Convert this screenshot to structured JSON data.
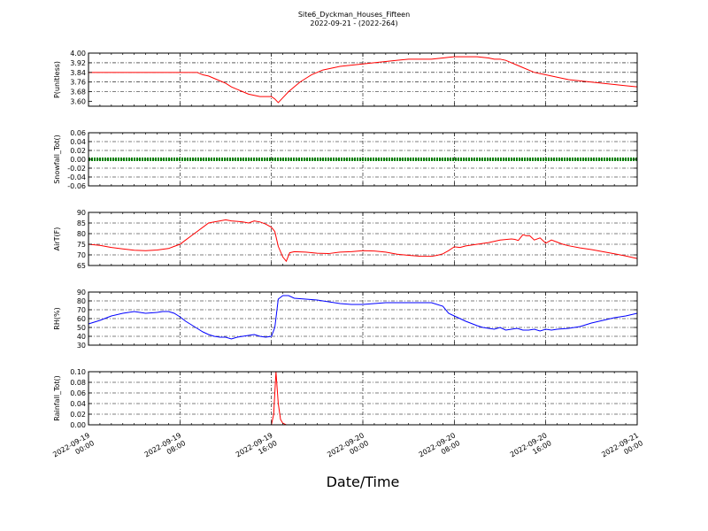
{
  "title": "Site6_Dyckman_Houses_Fifteen",
  "subtitle": "2022-09-21 - (2022-264)",
  "xlabel": "Date/Time",
  "x_ticks": [
    [
      "2022-09-19",
      "00:00"
    ],
    [
      "2022-09-19",
      "08:00"
    ],
    [
      "2022-09-19",
      "16:00"
    ],
    [
      "2022-09-20",
      "00:00"
    ],
    [
      "2022-09-20",
      "08:00"
    ],
    [
      "2022-09-20",
      "16:00"
    ],
    [
      "2022-09-21",
      "00:00"
    ]
  ],
  "colors": {
    "red": "#ff0000",
    "green": "#008000",
    "blue": "#0000ff"
  },
  "chart_data": [
    {
      "type": "line",
      "ylabel": "P(unitless)",
      "ylim": [
        3.56,
        4.0
      ],
      "yticks": [
        "3.60",
        "3.68",
        "3.76",
        "3.84",
        "3.92",
        "4.00"
      ],
      "color": "#ff0000",
      "grid": true,
      "x_hours": [
        0,
        1,
        2,
        3,
        4,
        5,
        6,
        7,
        8,
        9,
        9.5,
        10,
        10.5,
        11,
        11.5,
        12,
        12.5,
        13,
        13.5,
        14,
        14.5,
        15,
        15.5,
        16,
        16.3,
        16.6,
        17,
        17.5,
        18,
        18.5,
        19,
        19.5,
        20,
        20.5,
        21,
        21.5,
        22,
        23,
        24,
        25,
        26,
        27,
        28,
        29,
        30,
        31,
        32,
        33,
        34,
        35,
        35.5,
        36,
        36.5,
        37,
        37.5,
        38,
        39,
        40,
        41,
        41.5,
        42,
        43,
        44,
        45,
        46,
        47,
        48
      ],
      "values": [
        3.84,
        3.84,
        3.84,
        3.84,
        3.84,
        3.84,
        3.84,
        3.84,
        3.84,
        3.84,
        3.84,
        3.82,
        3.81,
        3.79,
        3.77,
        3.75,
        3.72,
        3.7,
        3.68,
        3.66,
        3.65,
        3.64,
        3.64,
        3.64,
        3.62,
        3.59,
        3.63,
        3.68,
        3.72,
        3.76,
        3.79,
        3.82,
        3.84,
        3.86,
        3.87,
        3.88,
        3.89,
        3.9,
        3.91,
        3.92,
        3.93,
        3.94,
        3.95,
        3.95,
        3.95,
        3.96,
        3.97,
        3.97,
        3.97,
        3.96,
        3.95,
        3.95,
        3.94,
        3.92,
        3.9,
        3.88,
        3.84,
        3.82,
        3.8,
        3.79,
        3.78,
        3.77,
        3.76,
        3.75,
        3.74,
        3.73,
        3.72
      ]
    },
    {
      "type": "line",
      "ylabel": "Snowfall_Tot()",
      "ylim": [
        -0.06,
        0.06
      ],
      "yticks": [
        "-0.06",
        "-0.04",
        "-0.02",
        "0.00",
        "0.02",
        "0.04",
        "0.06"
      ],
      "color": "#008000",
      "grid": true,
      "x_hours": [
        0,
        48
      ],
      "values": [
        0.0,
        0.0
      ]
    },
    {
      "type": "line",
      "ylabel": "AirT(F)",
      "ylim": [
        65,
        90
      ],
      "yticks": [
        "65",
        "70",
        "75",
        "80",
        "85",
        "90"
      ],
      "color": "#ff0000",
      "grid": true,
      "x_hours": [
        0,
        1,
        2,
        3,
        4,
        5,
        6,
        7,
        7.5,
        8,
        8.5,
        9,
        9.5,
        10,
        10.5,
        11,
        11.5,
        12,
        12.5,
        13,
        13.5,
        14,
        14.5,
        15,
        15.5,
        16,
        16.3,
        16.6,
        17,
        17.3,
        17.6,
        18,
        19,
        20,
        21,
        22,
        23,
        24,
        25,
        26,
        27,
        28,
        29,
        30,
        30.5,
        31,
        31.5,
        32,
        32.5,
        33,
        34,
        35,
        36,
        37,
        37.3,
        37.6,
        38,
        38.3,
        38.6,
        39,
        39.5,
        40,
        40.5,
        41,
        41.5,
        42,
        43,
        44,
        45,
        46,
        47,
        48
      ],
      "values": [
        75,
        74.5,
        73.5,
        72.8,
        72.2,
        72,
        72.3,
        73,
        74,
        75,
        77,
        79,
        81,
        83,
        85,
        85.5,
        86,
        86.5,
        86,
        85.8,
        85.5,
        85,
        86,
        85.5,
        84.5,
        83,
        81,
        74,
        69,
        67,
        71,
        71.5,
        71.3,
        70.8,
        70.6,
        71.3,
        71.5,
        72,
        71.8,
        71.3,
        70.3,
        69.8,
        69.4,
        69.3,
        69.8,
        70.5,
        72,
        73.8,
        73.5,
        74.2,
        75,
        75.8,
        77,
        77.5,
        77.3,
        76.8,
        79.5,
        79,
        79,
        77,
        78,
        75.5,
        77,
        76,
        75,
        74.3,
        73.3,
        72.5,
        71.5,
        70.5,
        69.5,
        68.3
      ]
    },
    {
      "type": "line",
      "ylabel": "RH(%)",
      "ylim": [
        30,
        90
      ],
      "yticks": [
        "30",
        "40",
        "50",
        "60",
        "70",
        "80",
        "90"
      ],
      "color": "#0000ff",
      "grid": true,
      "x_hours": [
        0,
        1,
        2,
        3,
        4,
        5,
        6,
        6.5,
        7,
        7.5,
        8,
        8.5,
        9,
        9.5,
        10,
        10.5,
        11,
        11.5,
        12,
        12.5,
        13,
        13.5,
        14,
        14.5,
        15,
        15.5,
        16,
        16.3,
        16.6,
        17,
        17.5,
        18,
        19,
        20,
        21,
        22,
        23,
        24,
        25,
        26,
        27,
        28,
        29,
        30,
        31,
        31.5,
        32,
        32.5,
        33,
        34,
        34.5,
        35,
        35.5,
        36,
        36.5,
        37,
        37.5,
        38,
        38.5,
        39,
        39.5,
        40,
        40.5,
        41,
        42,
        43,
        44,
        45,
        46,
        47,
        48
      ],
      "values": [
        54,
        58,
        63,
        66,
        68,
        66,
        67,
        68,
        68,
        66,
        62,
        57,
        53,
        49,
        45,
        42,
        40,
        39,
        39,
        37,
        39,
        40,
        41,
        42,
        40,
        39,
        40,
        50,
        82,
        86,
        86,
        83,
        82,
        81,
        79,
        77,
        76,
        76,
        77,
        78,
        78,
        78,
        78,
        78,
        74,
        66,
        63,
        60,
        57,
        52,
        50,
        49,
        48,
        50,
        47,
        48,
        49,
        47,
        47,
        48,
        46,
        48,
        47,
        48,
        49,
        51,
        55,
        58,
        61,
        63,
        66
      ]
    },
    {
      "type": "line",
      "ylabel": "Rainfall_Tot()",
      "ylim": [
        0,
        0.1
      ],
      "yticks": [
        "0.00",
        "0.02",
        "0.04",
        "0.06",
        "0.08",
        "0.10"
      ],
      "color": "#ff0000",
      "grid": true,
      "x_hours": [
        0,
        16.0,
        16.2,
        16.4,
        16.6,
        16.8,
        17.0,
        17.3,
        48
      ],
      "values": [
        0,
        0,
        0.02,
        0.1,
        0.04,
        0.01,
        0.003,
        0,
        0
      ]
    }
  ]
}
